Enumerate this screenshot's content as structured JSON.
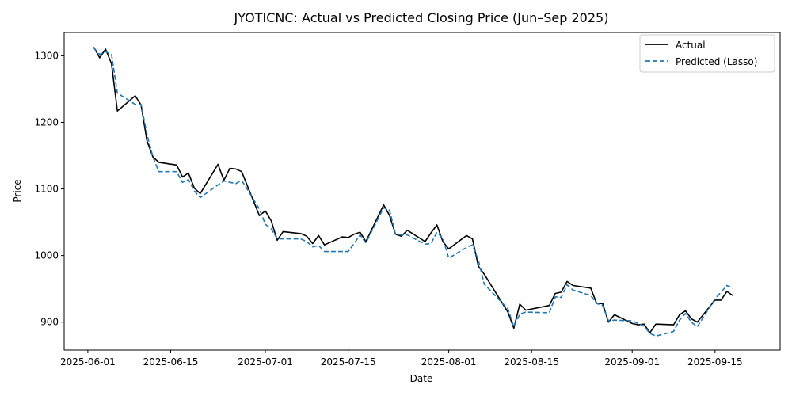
{
  "chart_data": {
    "type": "line",
    "title": "JYOTICNC: Actual vs Predicted Closing Price (Jun–Sep 2025)",
    "xlabel": "Date",
    "ylabel": "Price",
    "xlim": [
      "2025-05-28",
      "2025-09-26"
    ],
    "ylim": [
      858,
      1335
    ],
    "x_ticks": [
      "2025-06-01",
      "2025-06-15",
      "2025-07-01",
      "2025-07-15",
      "2025-08-01",
      "2025-08-15",
      "2025-09-01",
      "2025-09-15"
    ],
    "y_ticks": [
      900,
      1000,
      1100,
      1200,
      1300
    ],
    "grid": false,
    "legend": "top-right",
    "series": [
      {
        "name": "Actual",
        "color": "#000000",
        "style": "solid",
        "points": [
          [
            "2025-06-02",
            1313
          ],
          [
            "2025-06-03",
            1297
          ],
          [
            "2025-06-04",
            1310
          ],
          [
            "2025-06-05",
            1288
          ],
          [
            "2025-06-06",
            1217
          ],
          [
            "2025-06-09",
            1240
          ],
          [
            "2025-06-10",
            1226
          ],
          [
            "2025-06-11",
            1172
          ],
          [
            "2025-06-12",
            1148
          ],
          [
            "2025-06-13",
            1140
          ],
          [
            "2025-06-16",
            1136
          ],
          [
            "2025-06-17",
            1118
          ],
          [
            "2025-06-18",
            1124
          ],
          [
            "2025-06-19",
            1101
          ],
          [
            "2025-06-20",
            1093
          ],
          [
            "2025-06-23",
            1137
          ],
          [
            "2025-06-24",
            1113
          ],
          [
            "2025-06-25",
            1131
          ],
          [
            "2025-06-26",
            1130
          ],
          [
            "2025-06-27",
            1126
          ],
          [
            "2025-06-30",
            1060
          ],
          [
            "2025-07-01",
            1067
          ],
          [
            "2025-07-02",
            1052
          ],
          [
            "2025-07-03",
            1023
          ],
          [
            "2025-07-04",
            1036
          ],
          [
            "2025-07-07",
            1033
          ],
          [
            "2025-07-08",
            1029
          ],
          [
            "2025-07-09",
            1018
          ],
          [
            "2025-07-10",
            1030
          ],
          [
            "2025-07-11",
            1016
          ],
          [
            "2025-07-14",
            1028
          ],
          [
            "2025-07-15",
            1027
          ],
          [
            "2025-07-16",
            1032
          ],
          [
            "2025-07-17",
            1035
          ],
          [
            "2025-07-18",
            1021
          ],
          [
            "2025-07-21",
            1076
          ],
          [
            "2025-07-22",
            1060
          ],
          [
            "2025-07-23",
            1032
          ],
          [
            "2025-07-24",
            1029
          ],
          [
            "2025-07-25",
            1038
          ],
          [
            "2025-07-28",
            1021
          ],
          [
            "2025-07-29",
            1034
          ],
          [
            "2025-07-30",
            1046
          ],
          [
            "2025-07-31",
            1021
          ],
          [
            "2025-08-01",
            1010
          ],
          [
            "2025-08-04",
            1030
          ],
          [
            "2025-08-05",
            1025
          ],
          [
            "2025-08-06",
            984
          ],
          [
            "2025-08-07",
            972
          ],
          [
            "2025-08-11",
            915
          ],
          [
            "2025-08-12",
            891
          ],
          [
            "2025-08-13",
            927
          ],
          [
            "2025-08-14",
            918
          ],
          [
            "2025-08-18",
            925
          ],
          [
            "2025-08-19",
            943
          ],
          [
            "2025-08-20",
            945
          ],
          [
            "2025-08-21",
            961
          ],
          [
            "2025-08-22",
            955
          ],
          [
            "2025-08-25",
            951
          ],
          [
            "2025-08-26",
            928
          ],
          [
            "2025-08-27",
            928
          ],
          [
            "2025-08-28",
            900
          ],
          [
            "2025-08-29",
            911
          ],
          [
            "2025-09-01",
            898
          ],
          [
            "2025-09-02",
            896
          ],
          [
            "2025-09-03",
            897
          ],
          [
            "2025-09-04",
            884
          ],
          [
            "2025-09-05",
            897
          ],
          [
            "2025-09-08",
            896
          ],
          [
            "2025-09-09",
            911
          ],
          [
            "2025-09-10",
            917
          ],
          [
            "2025-09-11",
            905
          ],
          [
            "2025-09-12",
            900
          ],
          [
            "2025-09-15",
            933
          ],
          [
            "2025-09-16",
            933
          ],
          [
            "2025-09-17",
            946
          ],
          [
            "2025-09-18",
            940
          ]
        ]
      },
      {
        "name": "Predicted (Lasso)",
        "color": "#1f77b4",
        "style": "dashed",
        "points": [
          [
            "2025-06-02",
            1312
          ],
          [
            "2025-06-03",
            1302
          ],
          [
            "2025-06-04",
            1306
          ],
          [
            "2025-06-05",
            1302
          ],
          [
            "2025-06-06",
            1244
          ],
          [
            "2025-06-09",
            1227
          ],
          [
            "2025-06-10",
            1227
          ],
          [
            "2025-06-11",
            1182
          ],
          [
            "2025-06-12",
            1148
          ],
          [
            "2025-06-13",
            1126
          ],
          [
            "2025-06-16",
            1126
          ],
          [
            "2025-06-17",
            1110
          ],
          [
            "2025-06-18",
            1114
          ],
          [
            "2025-06-19",
            1097
          ],
          [
            "2025-06-20",
            1087
          ],
          [
            "2025-06-23",
            1106
          ],
          [
            "2025-06-24",
            1112
          ],
          [
            "2025-06-25",
            1110
          ],
          [
            "2025-06-26",
            1108
          ],
          [
            "2025-06-27",
            1113
          ],
          [
            "2025-06-30",
            1070
          ],
          [
            "2025-07-01",
            1047
          ],
          [
            "2025-07-02",
            1040
          ],
          [
            "2025-07-03",
            1025
          ],
          [
            "2025-07-04",
            1025
          ],
          [
            "2025-07-07",
            1025
          ],
          [
            "2025-07-08",
            1021
          ],
          [
            "2025-07-09",
            1013
          ],
          [
            "2025-07-10",
            1015
          ],
          [
            "2025-07-11",
            1006
          ],
          [
            "2025-07-14",
            1006
          ],
          [
            "2025-07-15",
            1006
          ],
          [
            "2025-07-16",
            1018
          ],
          [
            "2025-07-17",
            1031
          ],
          [
            "2025-07-18",
            1019
          ],
          [
            "2025-07-21",
            1072
          ],
          [
            "2025-07-22",
            1068
          ],
          [
            "2025-07-23",
            1032
          ],
          [
            "2025-07-24",
            1031
          ],
          [
            "2025-07-25",
            1031
          ],
          [
            "2025-07-28",
            1017
          ],
          [
            "2025-07-29",
            1018
          ],
          [
            "2025-07-30",
            1035
          ],
          [
            "2025-07-31",
            1026
          ],
          [
            "2025-08-01",
            996
          ],
          [
            "2025-08-04",
            1012
          ],
          [
            "2025-08-05",
            1016
          ],
          [
            "2025-08-06",
            993
          ],
          [
            "2025-08-07",
            957
          ],
          [
            "2025-08-11",
            920
          ],
          [
            "2025-08-12",
            893
          ],
          [
            "2025-08-13",
            912
          ],
          [
            "2025-08-14",
            915
          ],
          [
            "2025-08-18",
            914
          ],
          [
            "2025-08-19",
            938
          ],
          [
            "2025-08-20",
            937
          ],
          [
            "2025-08-21",
            956
          ],
          [
            "2025-08-22",
            948
          ],
          [
            "2025-08-25",
            940
          ],
          [
            "2025-08-26",
            928
          ],
          [
            "2025-08-27",
            925
          ],
          [
            "2025-08-28",
            902
          ],
          [
            "2025-08-29",
            903
          ],
          [
            "2025-09-01",
            902
          ],
          [
            "2025-09-02",
            898
          ],
          [
            "2025-09-03",
            894
          ],
          [
            "2025-09-04",
            883
          ],
          [
            "2025-09-05",
            879
          ],
          [
            "2025-09-08",
            886
          ],
          [
            "2025-09-09",
            903
          ],
          [
            "2025-09-10",
            913
          ],
          [
            "2025-09-11",
            900
          ],
          [
            "2025-09-12",
            893
          ],
          [
            "2025-09-15",
            935
          ],
          [
            "2025-09-16",
            945
          ],
          [
            "2025-09-17",
            955
          ],
          [
            "2025-09-18",
            951
          ]
        ]
      }
    ]
  }
}
